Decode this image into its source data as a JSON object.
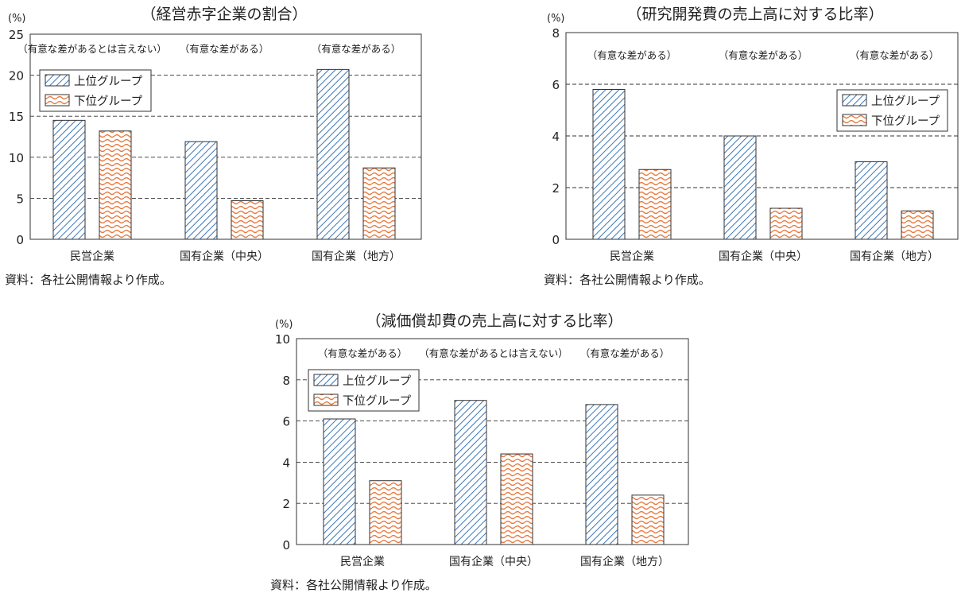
{
  "source_note": "資料：各社公開情報より作成。",
  "colors": {
    "upper": "#3d77b8",
    "lower": "#e8783c",
    "axis": "#333333",
    "grid": "#333333"
  },
  "chart_data": [
    {
      "type": "bar",
      "title": "（経営赤字企業の割合）",
      "unit": "(%)",
      "ylim": [
        0,
        25
      ],
      "yticks": [
        "0",
        "5",
        "10",
        "15",
        "20",
        "25"
      ],
      "grid": true,
      "legend": "top-left",
      "categories": [
        "民営企業",
        "国有企業（中央）",
        "国有企業（地方）"
      ],
      "annotations": [
        "（有意な差があるとは言えない）",
        "（有意な差がある）",
        "（有意な差がある）"
      ],
      "series": [
        {
          "name": "上位グループ",
          "values": [
            14.5,
            11.9,
            20.7
          ]
        },
        {
          "name": "下位グループ",
          "values": [
            13.2,
            4.7,
            8.7
          ]
        }
      ]
    },
    {
      "type": "bar",
      "title": "（研究開発費の売上高に対する比率）",
      "unit": "(%)",
      "ylim": [
        0,
        8
      ],
      "yticks": [
        "0",
        "2",
        "4",
        "6",
        "8"
      ],
      "grid": true,
      "legend": "top-right",
      "categories": [
        "民営企業",
        "国有企業（中央）",
        "国有企業（地方）"
      ],
      "annotations": [
        "（有意な差がある）",
        "（有意な差がある）",
        "（有意な差がある）"
      ],
      "series": [
        {
          "name": "上位グループ",
          "values": [
            5.8,
            4.0,
            3.0
          ]
        },
        {
          "name": "下位グループ",
          "values": [
            2.7,
            1.2,
            1.1
          ]
        }
      ]
    },
    {
      "type": "bar",
      "title": "（減価償却費の売上高に対する比率）",
      "unit": "(%)",
      "ylim": [
        0,
        10
      ],
      "yticks": [
        "0",
        "2",
        "4",
        "6",
        "8",
        "10"
      ],
      "grid": true,
      "legend": "top-left",
      "categories": [
        "民営企業",
        "国有企業（中央）",
        "国有企業（地方）"
      ],
      "annotations": [
        "（有意な差がある）",
        "（有意な差があるとは言えない）",
        "（有意な差がある）"
      ],
      "series": [
        {
          "name": "上位グループ",
          "values": [
            6.1,
            7.0,
            6.8
          ]
        },
        {
          "name": "下位グループ",
          "values": [
            3.1,
            4.4,
            2.4
          ]
        }
      ]
    }
  ]
}
